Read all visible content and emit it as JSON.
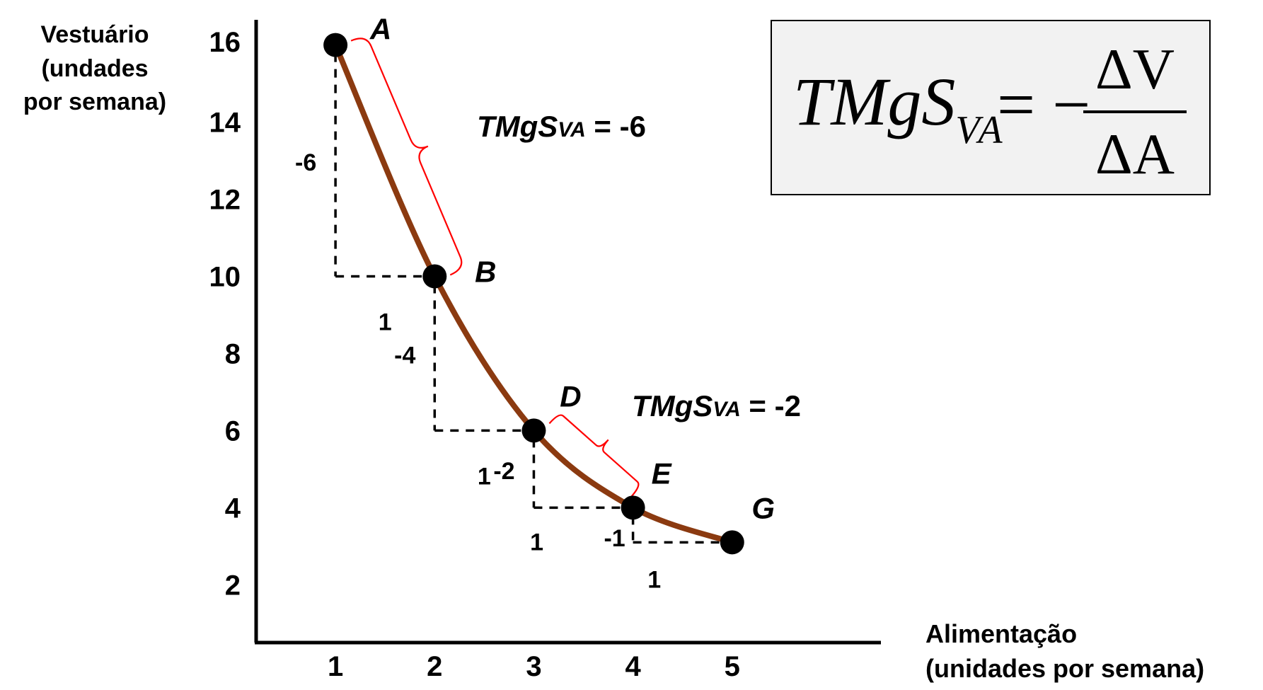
{
  "chart_data": {
    "type": "line",
    "x_axis": {
      "label_line1": "Alimentação",
      "label_line2": "(unidades por semana)",
      "range": [
        0.2,
        6.5
      ],
      "ticks": [
        "1",
        "2",
        "3",
        "4",
        "5"
      ]
    },
    "y_axis": {
      "label_line1": "Vestuário",
      "label_line2": "(undades",
      "label_line3": "por semana)",
      "range": [
        0.5,
        16.8
      ],
      "ticks": [
        "16",
        "14",
        "12",
        "10",
        "8",
        "6",
        "4",
        "2"
      ]
    },
    "series": [
      {
        "color": "#8b3a10",
        "points": [
          {
            "label": "A",
            "x": 1,
            "y": 16
          },
          {
            "label": "B",
            "x": 2,
            "y": 10
          },
          {
            "label": "D",
            "x": 3,
            "y": 6
          },
          {
            "label": "E",
            "x": 4,
            "y": 4
          },
          {
            "label": "G",
            "x": 5,
            "y": 3.1
          }
        ]
      }
    ],
    "steps": [
      {
        "dy_label": "-6",
        "dx_label": "1"
      },
      {
        "dy_label": "-4",
        "dx_label": "1"
      },
      {
        "dy_label": "-2",
        "dx_label": "1"
      },
      {
        "dy_label": "-1",
        "dx_label": "1"
      }
    ],
    "annotations": [
      {
        "prefix": "TMgS",
        "sub": "VA",
        "suffix": " = -6",
        "brace_color": "#ff0000"
      },
      {
        "prefix": "TMgS",
        "sub": "VA",
        "suffix": " = -2",
        "brace_color": "#ff0000"
      }
    ],
    "formula": {
      "lhs": "TMgS",
      "lhs_sub": "VA",
      "eq": "= −",
      "numerator": "ΔV",
      "denominator": "ΔA"
    },
    "grid": false
  }
}
